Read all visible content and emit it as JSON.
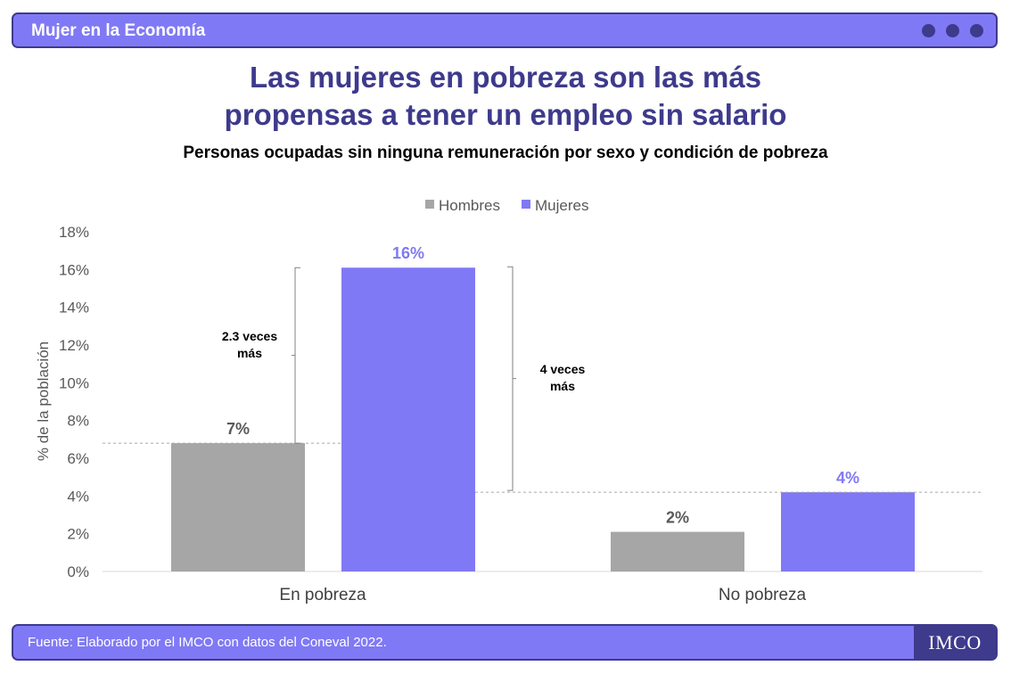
{
  "header": {
    "title": "Mujer en la Economía"
  },
  "main_title": {
    "line1": "Las mujeres en pobreza son las más",
    "line2": "propensas a tener un empleo sin salario"
  },
  "subtitle": "Personas ocupadas sin ninguna remuneración por sexo y condición de pobreza",
  "chart_data": {
    "type": "bar",
    "categories": [
      "En pobreza",
      "No pobreza"
    ],
    "series": [
      {
        "name": "Hombres",
        "values": [
          6.8,
          2.1
        ],
        "labels": [
          "7%",
          "2%"
        ],
        "color": "#A6A6A6",
        "label_color": "#595959"
      },
      {
        "name": "Mujeres",
        "values": [
          16.1,
          4.2
        ],
        "labels": [
          "16%",
          "4%"
        ],
        "color": "#8079F5",
        "label_color": "#8079F5"
      }
    ],
    "ylabel": "% de la población",
    "ylim": [
      0,
      18
    ],
    "yticks": [
      0,
      2,
      4,
      6,
      8,
      10,
      12,
      14,
      16,
      18
    ],
    "ytick_labels": [
      "0%",
      "2%",
      "4%",
      "6%",
      "8%",
      "10%",
      "12%",
      "14%",
      "16%",
      "18%"
    ],
    "legend_position": "top-center",
    "grid": false,
    "annotations": [
      {
        "line1": "2.3 veces",
        "line2": "más"
      },
      {
        "line1": "4 veces",
        "line2": "más"
      }
    ]
  },
  "footer": {
    "source": "Fuente:  Elaborado por el IMCO con datos del Coneval 2022.",
    "logo": "IMCO"
  },
  "colors": {
    "accent": "#8079F5",
    "dark": "#3E3A8C",
    "hombres": "#A6A6A6"
  }
}
